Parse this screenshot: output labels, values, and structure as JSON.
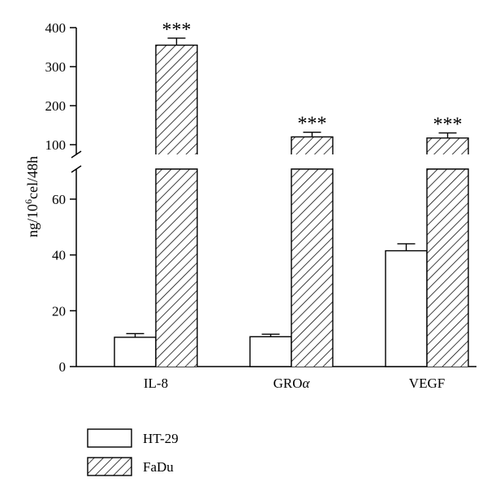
{
  "chart_data": {
    "type": "bar",
    "ylabel": "ng/10⁶cel/48h",
    "ylabel_parts": {
      "pre": "ng/10",
      "sup": "6",
      "post": "cel/48h"
    },
    "categories": [
      "IL-8",
      "GROα",
      "VEGF"
    ],
    "category_parts": [
      {
        "text": "IL-8",
        "italic": ""
      },
      {
        "text": "GRO",
        "italic": "α"
      },
      {
        "text": "VEGF",
        "italic": ""
      }
    ],
    "broken_axis": true,
    "lower_segment": {
      "ylim": [
        0,
        60
      ],
      "ticks": [
        "0",
        "20",
        "40",
        "60"
      ]
    },
    "upper_segment": {
      "ylim": [
        100,
        400
      ],
      "ticks": [
        "100",
        "200",
        "300",
        "400"
      ]
    },
    "series": [
      {
        "name": "HT-29",
        "fill": "white",
        "values": [
          10.5,
          10.7,
          41.5
        ],
        "errors": [
          1.3,
          0.9,
          2.5
        ],
        "annotations": [
          "",
          "",
          ""
        ]
      },
      {
        "name": "FaDu",
        "fill": "hatched",
        "values": [
          355,
          120,
          117
        ],
        "errors": [
          18,
          12,
          13
        ],
        "annotations": [
          "***",
          "***",
          "***"
        ]
      }
    ],
    "legend_position": "bottom-left",
    "grid": false
  }
}
